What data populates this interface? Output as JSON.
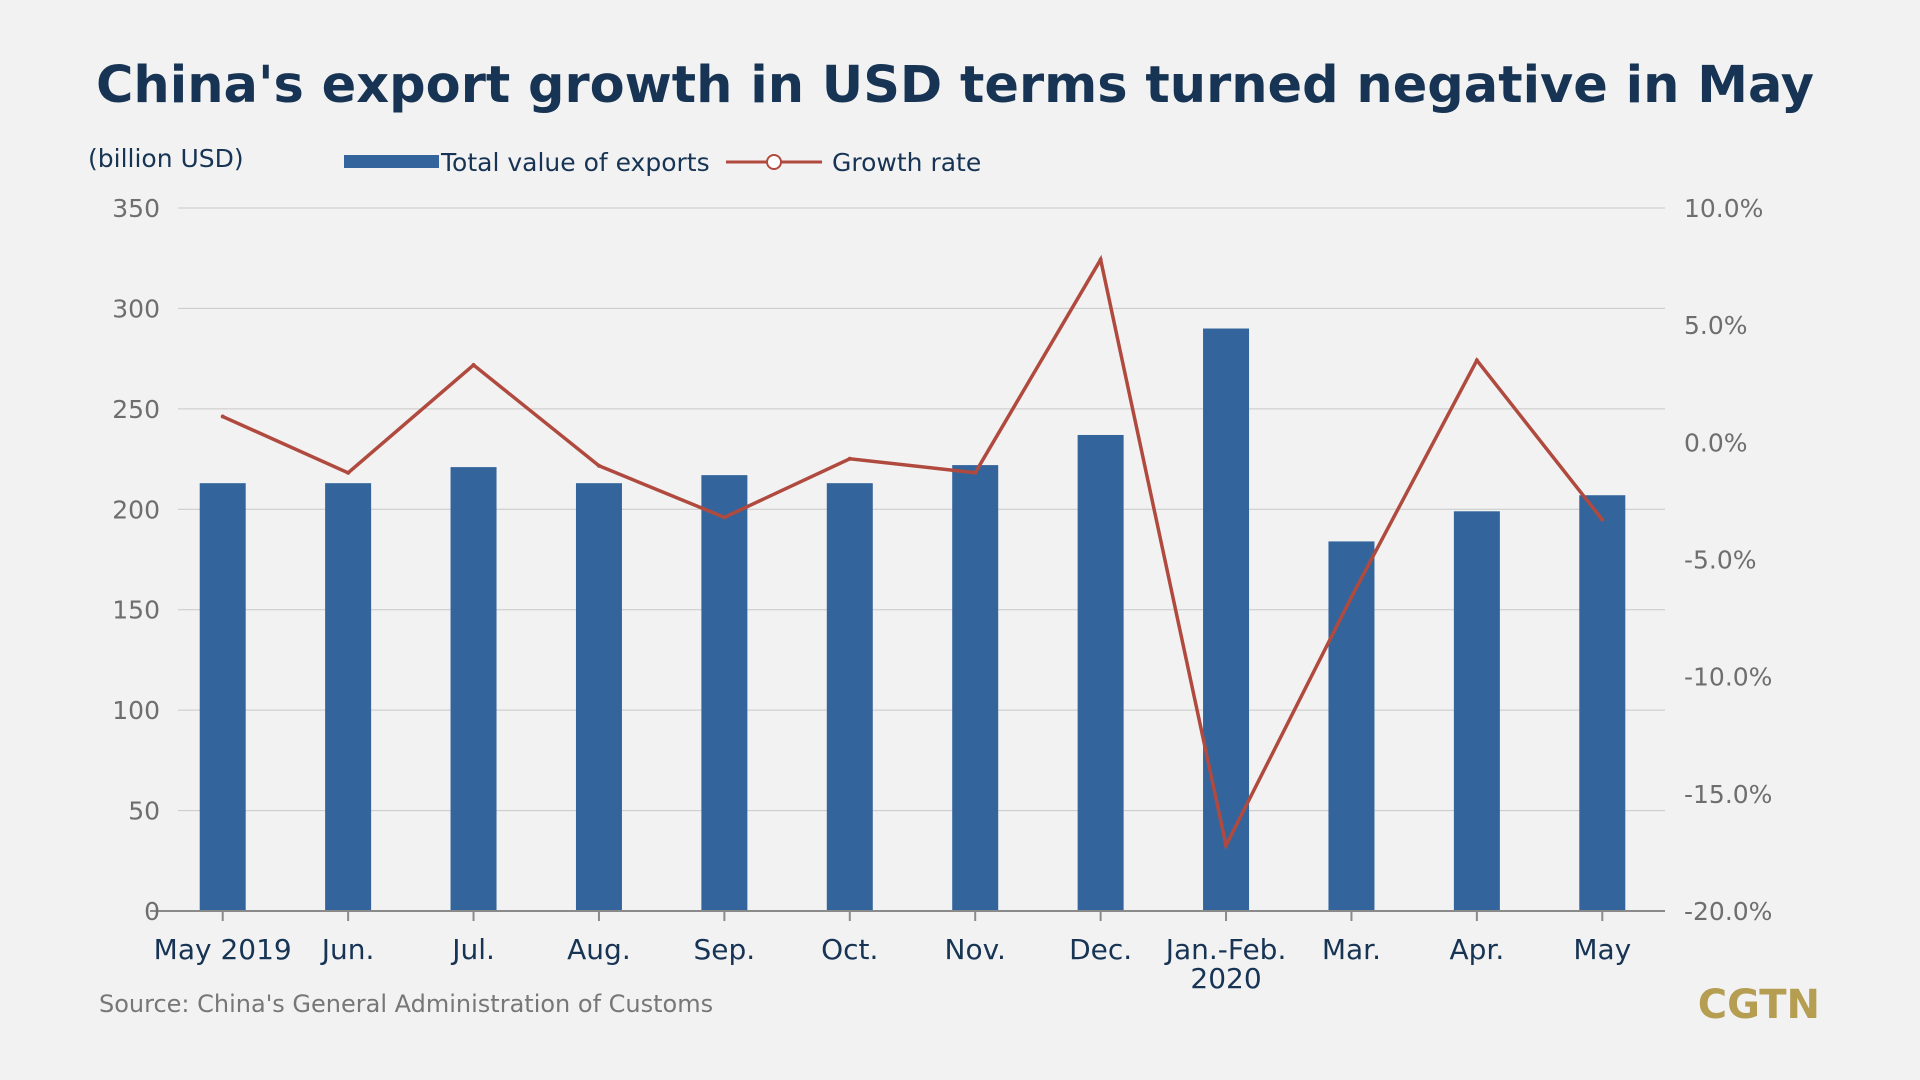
{
  "chart_data": {
    "type": "bar",
    "title": "China's export growth in USD terms turned negative in May",
    "unit_label": "(billion USD)",
    "categories": [
      "May 2019",
      "Jun.",
      "Jul.",
      "Aug.",
      "Sep.",
      "Oct.",
      "Nov.",
      "Dec.",
      [
        "Jan.-Feb.",
        "2020"
      ],
      "Mar.",
      "Apr.",
      "May"
    ],
    "series": [
      {
        "name": "Total value of exports",
        "kind": "bar",
        "axis": "left",
        "color": "#33659c",
        "values": [
          213,
          213,
          221,
          213,
          217,
          213,
          222,
          237,
          290,
          184,
          199,
          207
        ]
      },
      {
        "name": "Growth rate",
        "kind": "line",
        "axis": "right",
        "color": "#b04a3e",
        "values": [
          1.1,
          -1.3,
          3.3,
          -1.0,
          -3.2,
          -0.7,
          -1.3,
          7.8,
          -17.2,
          -6.6,
          3.5,
          -3.3
        ]
      }
    ],
    "y_left": {
      "range": [
        0,
        350
      ],
      "ticks": [
        {
          "v": 0,
          "t": "0"
        },
        {
          "v": 50,
          "t": "50"
        },
        {
          "v": 100,
          "t": "100"
        },
        {
          "v": 150,
          "t": "150"
        },
        {
          "v": 200,
          "t": "200"
        },
        {
          "v": 250,
          "t": "250"
        },
        {
          "v": 300,
          "t": "300"
        },
        {
          "v": 350,
          "t": "350"
        }
      ]
    },
    "y_right": {
      "range": [
        -20,
        10
      ],
      "ticks": [
        {
          "v": -20,
          "t": "-20.0%"
        },
        {
          "v": -15,
          "t": "-15.0%"
        },
        {
          "v": -10,
          "t": "-10.0%"
        },
        {
          "v": -5,
          "t": "-5.0%"
        },
        {
          "v": 0,
          "t": "0.0%"
        },
        {
          "v": 5,
          "t": "5.0%"
        },
        {
          "v": 10,
          "t": "10.0%"
        }
      ]
    },
    "grid": true,
    "legend_position": "top-left",
    "source": "Source: China's General Administration of Customs",
    "brand": "CGTN",
    "colors": {
      "background": "#f2f2f2",
      "title": "#173454",
      "axis_text": "#6e6e6e",
      "category_text": "#173454",
      "grid": "#c8c8c8",
      "brand": "#b59d52"
    }
  }
}
